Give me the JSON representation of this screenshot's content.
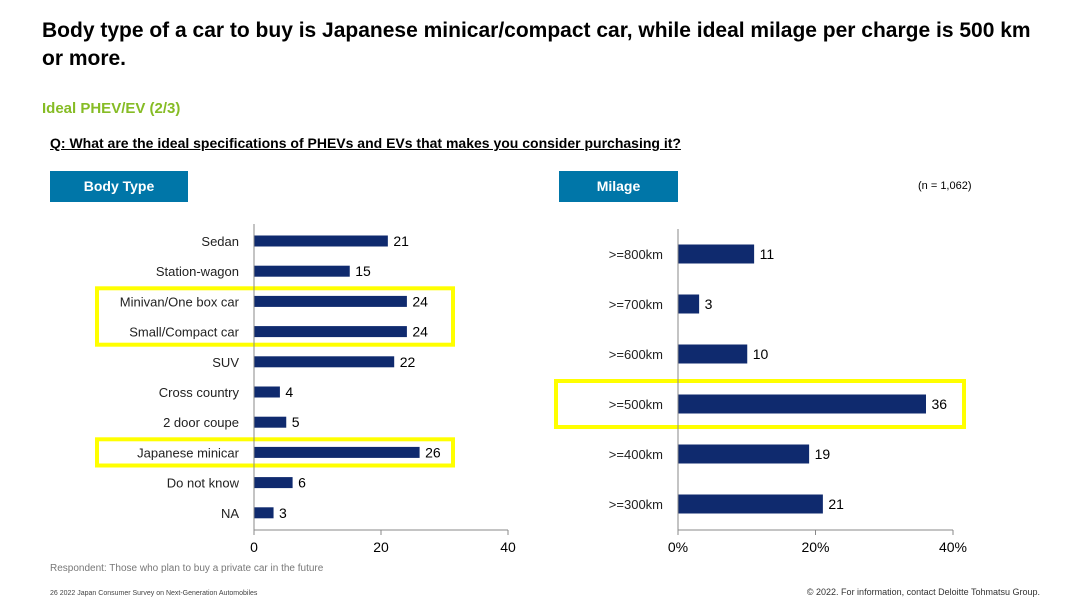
{
  "header": {
    "title": "Body type of a car to buy is Japanese minicar/compact car, while ideal milage per charge is 500 km or more.",
    "subtitle": "Ideal PHEV/EV (2/3)",
    "question": "Q: What are the ideal specifications of PHEVs and EVs that makes you consider purchasing it?"
  },
  "sections": {
    "body_type": "Body Type",
    "milage": "Milage"
  },
  "n_note": "(n = 1,062)",
  "respondent": "Respondent: Those who plan to buy a private car in the future",
  "footer": {
    "left": "26   2022 Japan Consumer Survey on Next-Generation Automobiles",
    "right": "© 2022. For information, contact Deloitte Tohmatsu Group."
  },
  "colors": {
    "bar": "#0f2a6e",
    "highlight": "#ffff00",
    "section_bg": "#0076a8",
    "subtitle": "#86bc25"
  },
  "chart_data": [
    {
      "type": "bar",
      "orientation": "horizontal",
      "title": "Body Type",
      "categories": [
        "Sedan",
        "Station-wagon",
        "Minivan/One box car",
        "Small/Compact car",
        "SUV",
        "Cross country",
        "2 door coupe",
        "Japanese minicar",
        "Do not know",
        "NA"
      ],
      "values": [
        21,
        15,
        24,
        24,
        22,
        4,
        5,
        26,
        6,
        3
      ],
      "xlim": [
        0,
        40
      ],
      "xticks": [
        "0",
        "20",
        "40"
      ],
      "highlighted": [
        "Minivan/One box car",
        "Small/Compact car",
        "Japanese minicar"
      ],
      "grid": false
    },
    {
      "type": "bar",
      "orientation": "horizontal",
      "title": "Milage",
      "categories": [
        ">=800km",
        ">=700km",
        ">=600km",
        ">=500km",
        ">=400km",
        ">=300km"
      ],
      "values": [
        11,
        3,
        10,
        36,
        19,
        21
      ],
      "xlim": [
        0,
        40
      ],
      "xticks": [
        "0%",
        "20%",
        "40%"
      ],
      "highlighted": [
        ">=500km"
      ],
      "grid": false
    }
  ]
}
